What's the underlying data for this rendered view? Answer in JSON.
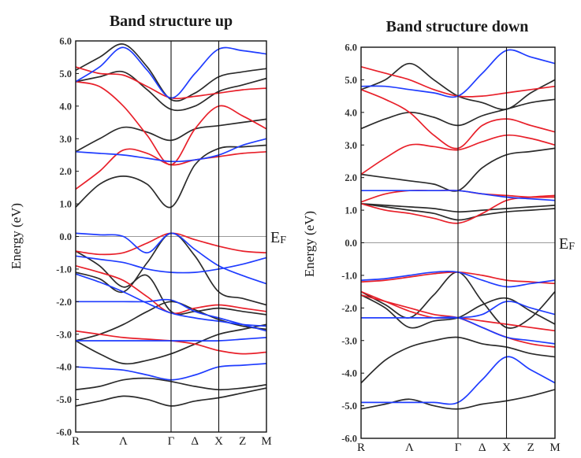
{
  "chart_data": [
    {
      "type": "line",
      "title": "Band structure up",
      "ylabel": "Energy (eV)",
      "ylim": [
        -6.0,
        6.0
      ],
      "yticks": [
        "6.0",
        "5.0",
        "4.0",
        "3.0",
        "2.0",
        "1.0",
        "0.0",
        "-1.0",
        "-2.0",
        "-3.0",
        "-4.0",
        "-5.0",
        "-6.0"
      ],
      "fermi_label": "E",
      "fermi_sub": "F",
      "fermi_level": 0.0,
      "x": [
        0,
        1,
        2,
        3,
        4,
        5,
        6,
        7,
        8
      ],
      "kpoints": [
        {
          "label": "R",
          "x": 0
        },
        {
          "label": "Λ",
          "x": 2
        },
        {
          "label": "Γ",
          "x": 4
        },
        {
          "label": "Δ",
          "x": 5
        },
        {
          "label": "X",
          "x": 6
        },
        {
          "label": "Z",
          "x": 7
        },
        {
          "label": "M",
          "x": 8
        }
      ],
      "vlines": [
        4,
        6
      ],
      "colors": {
        "k": "#2b2b2b",
        "r": "#e8202a",
        "b": "#1f3cff"
      },
      "series": [
        {
          "c": "k",
          "values": [
            -5.2,
            -5.05,
            -4.9,
            -5.0,
            -5.2,
            -5.05,
            -4.95,
            -4.8,
            -4.65
          ]
        },
        {
          "c": "k",
          "values": [
            -4.7,
            -4.6,
            -4.4,
            -4.35,
            -4.45,
            -4.6,
            -4.7,
            -4.65,
            -4.55
          ]
        },
        {
          "c": "k",
          "values": [
            -3.2,
            -3.6,
            -3.9,
            -3.8,
            -3.6,
            -3.3,
            -3.0,
            -2.85,
            -2.7
          ]
        },
        {
          "c": "k",
          "values": [
            -3.2,
            -3.0,
            -2.7,
            -2.3,
            -2.0,
            -2.25,
            -2.55,
            -2.75,
            -2.85
          ]
        },
        {
          "c": "k",
          "values": [
            -1.1,
            -1.3,
            -1.7,
            -0.8,
            0.1,
            -0.6,
            -1.7,
            -1.9,
            -2.1
          ]
        },
        {
          "c": "k",
          "values": [
            -0.45,
            -0.9,
            -1.55,
            -1.2,
            -2.3,
            -2.3,
            -2.2,
            -2.3,
            -2.4
          ]
        },
        {
          "c": "k",
          "values": [
            0.9,
            1.6,
            1.85,
            1.6,
            0.9,
            2.2,
            2.7,
            2.75,
            2.8
          ]
        },
        {
          "c": "k",
          "values": [
            2.6,
            3.0,
            3.35,
            3.2,
            2.95,
            3.3,
            3.4,
            3.5,
            3.6
          ]
        },
        {
          "c": "k",
          "values": [
            4.75,
            4.9,
            5.05,
            4.5,
            3.9,
            4.0,
            4.45,
            4.65,
            4.85
          ]
        },
        {
          "c": "k",
          "values": [
            5.1,
            5.5,
            5.9,
            5.2,
            4.2,
            4.4,
            4.9,
            5.05,
            5.15
          ]
        },
        {
          "c": "r",
          "values": [
            1.45,
            2.0,
            2.65,
            2.55,
            2.2,
            2.35,
            2.45,
            2.55,
            2.6
          ]
        },
        {
          "c": "r",
          "values": [
            4.75,
            4.6,
            4.0,
            3.1,
            2.2,
            3.3,
            4.0,
            3.7,
            3.3
          ]
        },
        {
          "c": "r",
          "values": [
            5.2,
            5.0,
            4.95,
            4.6,
            4.25,
            4.3,
            4.4,
            4.5,
            4.55
          ]
        },
        {
          "c": "r",
          "values": [
            -0.9,
            -1.1,
            -1.35,
            -1.85,
            -2.35,
            -2.2,
            -2.1,
            -2.2,
            -2.3
          ]
        },
        {
          "c": "r",
          "values": [
            -0.45,
            -0.55,
            -0.5,
            -0.2,
            0.1,
            -0.1,
            -0.3,
            -0.45,
            -0.5
          ]
        },
        {
          "c": "r",
          "values": [
            -2.9,
            -3.0,
            -3.1,
            -3.15,
            -3.2,
            -3.3,
            -3.5,
            -3.6,
            -3.55
          ]
        },
        {
          "c": "b",
          "values": [
            -1.15,
            -1.4,
            -1.7,
            -2.05,
            -2.35,
            -2.5,
            -2.6,
            -2.7,
            -2.75
          ]
        },
        {
          "c": "b",
          "values": [
            -3.2,
            -3.2,
            -3.2,
            -3.2,
            -3.2,
            -3.2,
            -3.2,
            -3.15,
            -3.1
          ]
        },
        {
          "c": "b",
          "values": [
            -2.0,
            -2.0,
            -2.0,
            -2.0,
            -1.95,
            -2.3,
            -2.5,
            -2.7,
            -2.9
          ]
        },
        {
          "c": "b",
          "values": [
            0.1,
            0.05,
            0.0,
            -0.5,
            0.1,
            -0.4,
            -0.9,
            -1.2,
            -1.45
          ]
        },
        {
          "c": "b",
          "values": [
            -0.6,
            -0.7,
            -0.8,
            -1.0,
            -1.1,
            -1.1,
            -1.0,
            -0.85,
            -0.65
          ]
        },
        {
          "c": "b",
          "values": [
            4.75,
            5.2,
            5.8,
            5.1,
            4.25,
            5.0,
            5.75,
            5.7,
            5.6
          ]
        },
        {
          "c": "b",
          "values": [
            2.6,
            2.55,
            2.5,
            2.4,
            2.3,
            2.35,
            2.5,
            2.8,
            3.0
          ]
        },
        {
          "c": "b",
          "values": [
            -4.0,
            -4.05,
            -4.1,
            -4.25,
            -4.4,
            -4.25,
            -4.0,
            -3.95,
            -3.9
          ]
        }
      ]
    },
    {
      "type": "line",
      "title": "Band structure down",
      "ylabel": "Energy (eV)",
      "ylim": [
        -6.0,
        6.0
      ],
      "yticks": [
        "6.0",
        "5.0",
        "4.0",
        "3.0",
        "2.0",
        "1.0",
        "0.0",
        "-1.0",
        "-2.0",
        "-3.0",
        "-4.0",
        "-5.0",
        "-6.0"
      ],
      "fermi_label": "E",
      "fermi_sub": "F",
      "fermi_level": 0.0,
      "x": [
        0,
        1,
        2,
        3,
        4,
        5,
        6,
        7,
        8
      ],
      "kpoints": [
        {
          "label": "R",
          "x": 0
        },
        {
          "label": "Λ",
          "x": 2
        },
        {
          "label": "Γ",
          "x": 4
        },
        {
          "label": "Δ",
          "x": 5
        },
        {
          "label": "X",
          "x": 6
        },
        {
          "label": "Z",
          "x": 7
        },
        {
          "label": "M",
          "x": 8
        }
      ],
      "vlines": [
        4,
        6
      ],
      "colors": {
        "k": "#2b2b2b",
        "r": "#e8202a",
        "b": "#1f3cff"
      },
      "series": [
        {
          "c": "k",
          "values": [
            -5.1,
            -4.95,
            -4.8,
            -5.0,
            -5.1,
            -4.95,
            -4.85,
            -4.7,
            -4.5
          ]
        },
        {
          "c": "k",
          "values": [
            -4.3,
            -3.6,
            -3.2,
            -3.0,
            -2.9,
            -3.1,
            -3.2,
            -3.4,
            -3.5
          ]
        },
        {
          "c": "k",
          "values": [
            -1.6,
            -2.0,
            -2.6,
            -2.4,
            -2.3,
            -1.9,
            -1.7,
            -2.1,
            -2.5
          ]
        },
        {
          "c": "k",
          "values": [
            -1.5,
            -1.9,
            -2.3,
            -1.6,
            -0.9,
            -1.8,
            -2.6,
            -2.3,
            -1.5
          ]
        },
        {
          "c": "k",
          "values": [
            1.2,
            1.15,
            1.1,
            1.05,
            0.95,
            1.0,
            1.05,
            1.1,
            1.15
          ]
        },
        {
          "c": "k",
          "values": [
            1.2,
            1.1,
            1.0,
            0.9,
            0.7,
            0.85,
            0.95,
            1.0,
            1.05
          ]
        },
        {
          "c": "k",
          "values": [
            2.1,
            2.0,
            1.9,
            1.8,
            1.6,
            2.3,
            2.7,
            2.8,
            2.9
          ]
        },
        {
          "c": "k",
          "values": [
            3.5,
            3.8,
            4.0,
            3.85,
            3.6,
            3.9,
            4.1,
            4.3,
            4.4
          ]
        },
        {
          "c": "k",
          "values": [
            4.7,
            5.0,
            5.5,
            5.0,
            4.5,
            4.3,
            4.1,
            4.6,
            5.0
          ]
        },
        {
          "c": "r",
          "values": [
            2.1,
            2.6,
            3.0,
            2.95,
            2.85,
            3.1,
            3.3,
            3.2,
            3.0
          ]
        },
        {
          "c": "r",
          "values": [
            4.7,
            4.4,
            4.0,
            3.3,
            2.9,
            3.6,
            3.8,
            3.6,
            3.4
          ]
        },
        {
          "c": "r",
          "values": [
            5.4,
            5.2,
            5.0,
            4.7,
            4.5,
            4.5,
            4.6,
            4.7,
            4.8
          ]
        },
        {
          "c": "r",
          "values": [
            1.25,
            1.5,
            1.6,
            1.6,
            1.6,
            1.5,
            1.45,
            1.4,
            1.4
          ]
        },
        {
          "c": "r",
          "values": [
            1.2,
            1.0,
            0.9,
            0.75,
            0.6,
            0.9,
            1.3,
            1.4,
            1.45
          ]
        },
        {
          "c": "r",
          "values": [
            -1.2,
            -1.15,
            -1.05,
            -0.95,
            -0.9,
            -1.0,
            -1.15,
            -1.2,
            -1.25
          ]
        },
        {
          "c": "r",
          "values": [
            -1.6,
            -1.8,
            -2.0,
            -2.2,
            -2.3,
            -2.6,
            -2.9,
            -3.1,
            -3.2
          ]
        },
        {
          "c": "r",
          "values": [
            -1.5,
            -1.8,
            -2.1,
            -2.3,
            -2.3,
            -2.4,
            -2.5,
            -2.6,
            -2.7
          ]
        },
        {
          "c": "b",
          "values": [
            -1.15,
            -1.1,
            -1.0,
            -0.9,
            -0.9,
            -1.15,
            -1.35,
            -1.25,
            -1.15
          ]
        },
        {
          "c": "b",
          "values": [
            -2.3,
            -2.3,
            -2.3,
            -2.3,
            -2.3,
            -2.6,
            -2.9,
            -3.0,
            -3.1
          ]
        },
        {
          "c": "b",
          "values": [
            -2.3,
            -2.3,
            -2.3,
            -2.3,
            -2.3,
            -2.2,
            -1.8,
            -2.0,
            -2.2
          ]
        },
        {
          "c": "b",
          "values": [
            -4.9,
            -4.9,
            -4.9,
            -4.9,
            -4.9,
            -4.2,
            -3.5,
            -3.9,
            -4.3
          ]
        },
        {
          "c": "b",
          "values": [
            1.6,
            1.6,
            1.6,
            1.6,
            1.6,
            1.5,
            1.4,
            1.35,
            1.3
          ]
        },
        {
          "c": "b",
          "values": [
            4.8,
            4.8,
            4.7,
            4.6,
            4.5,
            5.2,
            5.9,
            5.7,
            5.5
          ]
        }
      ]
    }
  ]
}
